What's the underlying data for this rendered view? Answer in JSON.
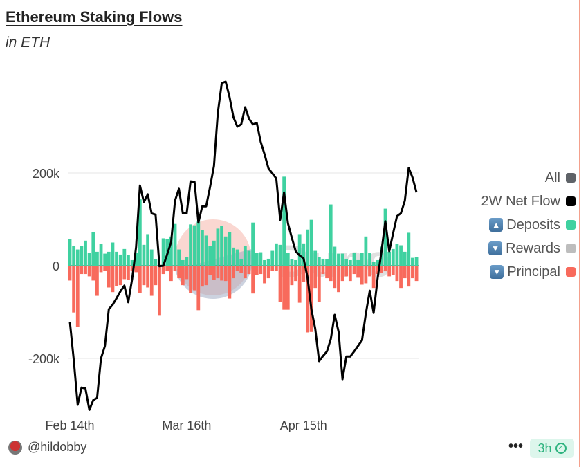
{
  "header": {
    "title": "Ethereum Staking Flows",
    "subtitle": "in ETH"
  },
  "legend": {
    "items": [
      {
        "label": "All",
        "arrow": "",
        "color": "#5f6368"
      },
      {
        "label": "2W Net Flow",
        "arrow": "",
        "color": "#000000"
      },
      {
        "label": "Deposits",
        "arrow": "▲",
        "color": "#3fd1a0"
      },
      {
        "label": "Rewards",
        "arrow": "▼",
        "color": "#bdbdbd"
      },
      {
        "label": "Principal",
        "arrow": "▼",
        "color": "#f86a5c"
      }
    ]
  },
  "footer": {
    "user": "@hildobby",
    "menu": "•••",
    "time": "3h",
    "check_icon": "✓"
  },
  "watermark": "Dune",
  "chart_data": {
    "type": "bar",
    "title": "Ethereum Staking Flows",
    "subtitle": "in ETH",
    "xlabel": "",
    "ylabel": "",
    "ylim": [
      -320000,
      400000
    ],
    "grid": true,
    "legend_position": "right",
    "y_ticks": [
      {
        "value": 200000,
        "label": "200k"
      },
      {
        "value": 0,
        "label": "0"
      },
      {
        "value": -200000,
        "label": "-200k"
      }
    ],
    "x_ticks": [
      {
        "date": "Feb 14",
        "label": "Feb 14th"
      },
      {
        "date": "Mar 16",
        "label": "Mar 16th"
      },
      {
        "date": "Apr 15",
        "label": "Apr 15th"
      }
    ],
    "categories": [
      "Feb 14",
      "Feb 15",
      "Feb 16",
      "Feb 17",
      "Feb 18",
      "Feb 19",
      "Feb 20",
      "Feb 21",
      "Feb 22",
      "Feb 23",
      "Feb 24",
      "Feb 25",
      "Feb 26",
      "Feb 27",
      "Feb 28",
      "Mar 1",
      "Mar 2",
      "Mar 3",
      "Mar 4",
      "Mar 5",
      "Mar 6",
      "Mar 7",
      "Mar 8",
      "Mar 9",
      "Mar 10",
      "Mar 11",
      "Mar 12",
      "Mar 13",
      "Mar 14",
      "Mar 15",
      "Mar 16",
      "Mar 17",
      "Mar 18",
      "Mar 19",
      "Mar 20",
      "Mar 21",
      "Mar 22",
      "Mar 23",
      "Mar 24",
      "Mar 25",
      "Mar 26",
      "Mar 27",
      "Mar 28",
      "Mar 29",
      "Mar 30",
      "Mar 31",
      "Apr 1",
      "Apr 2",
      "Apr 3",
      "Apr 4",
      "Apr 5",
      "Apr 6",
      "Apr 7",
      "Apr 8",
      "Apr 9",
      "Apr 10",
      "Apr 11",
      "Apr 12",
      "Apr 13",
      "Apr 14",
      "Apr 15",
      "Apr 16",
      "Apr 17",
      "Apr 18",
      "Apr 19",
      "Apr 20",
      "Apr 21",
      "Apr 22",
      "Apr 23",
      "Apr 24",
      "Apr 25",
      "Apr 26",
      "Apr 27",
      "Apr 28",
      "Apr 29",
      "Apr 30",
      "May 1",
      "May 2",
      "May 3",
      "May 4",
      "May 5",
      "May 6",
      "May 7",
      "May 8",
      "May 9",
      "May 10",
      "May 11",
      "May 12",
      "May 13",
      "May 14"
    ],
    "series": [
      {
        "name": "Deposits",
        "kind": "bar",
        "color": "#3fd1a0",
        "values": [
          57000,
          42000,
          35000,
          42000,
          54000,
          27000,
          72000,
          30000,
          47000,
          26000,
          30000,
          50000,
          30000,
          24000,
          36000,
          23000,
          12000,
          27000,
          143000,
          45000,
          68000,
          35000,
          14000,
          2000,
          59000,
          57000,
          63000,
          90000,
          35000,
          12000,
          18000,
          89000,
          87000,
          95000,
          77000,
          65000,
          42000,
          54000,
          80000,
          86000,
          63000,
          72000,
          39000,
          35000,
          15000,
          42000,
          32000,
          93000,
          27000,
          29000,
          12000,
          15000,
          32000,
          48000,
          45000,
          192000,
          27000,
          14000,
          12000,
          68000,
          48000,
          78000,
          99000,
          32000,
          18000,
          15000,
          14000,
          132000,
          41000,
          26000,
          26000,
          15000,
          12000,
          27000,
          12000,
          27000,
          63000,
          27000,
          8000,
          12000,
          41000,
          123000,
          30000,
          36000,
          47000,
          44000,
          30000,
          71000,
          17000,
          18000
        ]
      },
      {
        "name": "Principal",
        "kind": "bar",
        "color": "#f86a5c",
        "values": [
          -32000,
          -101000,
          -132000,
          -18000,
          -18000,
          -23000,
          -32000,
          -65000,
          -14000,
          -11000,
          -47000,
          -57000,
          -44000,
          -42000,
          -29000,
          -30000,
          -12000,
          -14000,
          -59000,
          -42000,
          -47000,
          -65000,
          -42000,
          -108000,
          -18000,
          -12000,
          -33000,
          -11000,
          -27000,
          -42000,
          -29000,
          -59000,
          -53000,
          -96000,
          -45000,
          -42000,
          -20000,
          -30000,
          -27000,
          -32000,
          -33000,
          -71000,
          -27000,
          -11000,
          -15000,
          -27000,
          -18000,
          -60000,
          -20000,
          -18000,
          -38000,
          -27000,
          -11000,
          -11000,
          -78000,
          -95000,
          -95000,
          -42000,
          -33000,
          -80000,
          -35000,
          -144000,
          -143000,
          -48000,
          -78000,
          -18000,
          -27000,
          -33000,
          -48000,
          -57000,
          -33000,
          -23000,
          -33000,
          -18000,
          -26000,
          -41000,
          -38000,
          -23000,
          -48000,
          -18000,
          -15000,
          -12000,
          -23000,
          -20000,
          -33000,
          -48000,
          -27000,
          -45000,
          -27000,
          -33000
        ]
      },
      {
        "name": "2W Net Flow",
        "kind": "line",
        "color": "#000000",
        "values": [
          -121000,
          -203000,
          -300000,
          -263000,
          -265000,
          -311000,
          -290000,
          -285000,
          -200000,
          -173000,
          -94000,
          -84000,
          -70000,
          -55000,
          -43000,
          -79000,
          -28000,
          40000,
          173000,
          137000,
          154000,
          113000,
          110000,
          -1000,
          0,
          25000,
          51000,
          140000,
          166000,
          113000,
          113000,
          182000,
          181000,
          93000,
          128000,
          128000,
          170000,
          215000,
          330000,
          394000,
          397000,
          364000,
          320000,
          300000,
          305000,
          342000,
          317000,
          305000,
          308000,
          267000,
          240000,
          210000,
          199000,
          188000,
          99000,
          158000,
          91000,
          60000,
          31000,
          22000,
          16000,
          -24000,
          -94000,
          -136000,
          -206000,
          -195000,
          -185000,
          -158000,
          -106000,
          -143000,
          -245000,
          -196000,
          -196000,
          -185000,
          -173000,
          -161000,
          -103000,
          -54000,
          -102000,
          -28000,
          30000,
          96000,
          31000,
          70000,
          107000,
          113000,
          140000,
          211000,
          190000,
          158000
        ]
      }
    ]
  }
}
